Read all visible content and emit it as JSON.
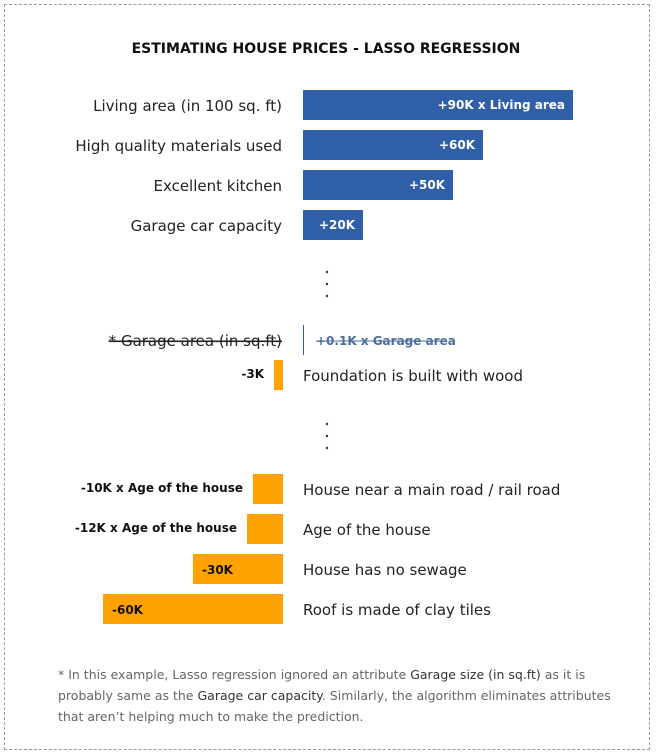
{
  "chart_data": {
    "type": "bar",
    "title": "ESTIMATING HOUSE PRICES - LASSO REGRESSION",
    "colors": {
      "positive": "#2f5fa6",
      "negative": "#ffa200",
      "text": "#222222",
      "muted": "#4a6f9c"
    },
    "positive_bars": [
      {
        "label": "Living area (in 100 sq. ft)",
        "value": 90,
        "data_label": "+90K x  Living area"
      },
      {
        "label": "High quality materials used",
        "value": 60,
        "data_label": "+60K"
      },
      {
        "label": "Excellent kitchen",
        "value": 50,
        "data_label": "+50K"
      },
      {
        "label": "Garage car capacity",
        "value": 20,
        "data_label": "+20K"
      }
    ],
    "eliminated": {
      "label": "* Garage area (in sq.ft)",
      "value": 0.1,
      "data_label": "+0.1K x Garage area"
    },
    "negative_bars": [
      {
        "label": "Foundation is built with wood",
        "value": -3,
        "data_label": "-3K"
      },
      {
        "label": "House near a main road / rail road",
        "value": -10,
        "data_label": "-10K x Age of the house"
      },
      {
        "label": "Age of the house",
        "value": -12,
        "data_label": "-12K x Age of the house"
      },
      {
        "label": "House has no sewage",
        "value": -30,
        "data_label": "-30K"
      },
      {
        "label": "Roof is made of clay tiles",
        "value": -60,
        "data_label": "-60K"
      }
    ]
  },
  "footnote": {
    "part1": "* In this example, Lasso regression ignored an attribute ",
    "hl1": "Garage size (in sq.ft)",
    "part2": " as it is probably same as the ",
    "hl2": "Garage car capacity",
    "part3": ". Similarly, the algorithm eliminates attributes that aren’t helping much to make the prediction."
  }
}
